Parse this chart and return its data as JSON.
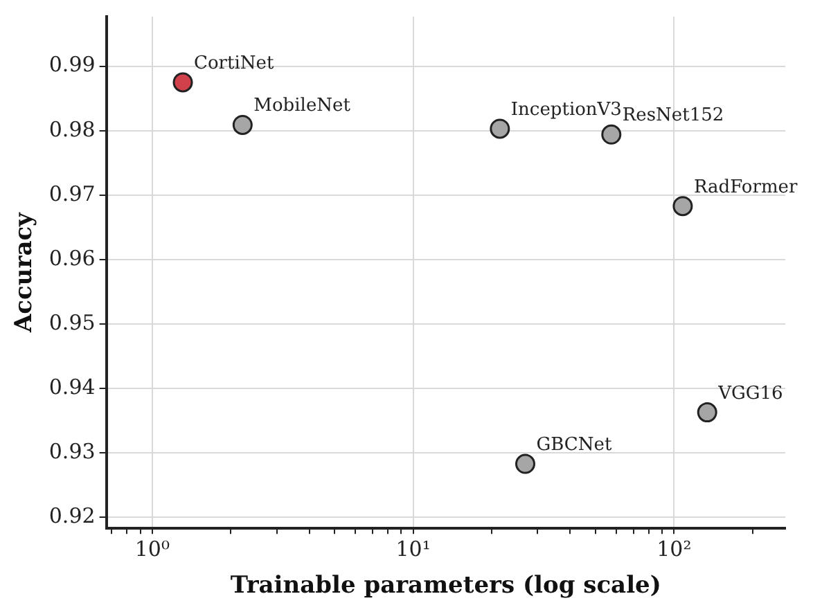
{
  "chart_data": {
    "type": "scatter",
    "xlabel": "Trainable parameters (log scale)",
    "ylabel": "Accuracy",
    "log": "x",
    "xlim": [
      0.667,
      267
    ],
    "ylim": [
      0.9183,
      0.9977
    ],
    "xticks": [
      {
        "value": 0.7,
        "label": null
      },
      {
        "value": 0.8,
        "label": null
      },
      {
        "value": 0.9,
        "label": null
      },
      {
        "value": 1,
        "label": "10⁰"
      },
      {
        "value": 2,
        "label": null
      },
      {
        "value": 3,
        "label": null
      },
      {
        "value": 4,
        "label": null
      },
      {
        "value": 5,
        "label": null
      },
      {
        "value": 6,
        "label": null
      },
      {
        "value": 7,
        "label": null
      },
      {
        "value": 8,
        "label": null
      },
      {
        "value": 9,
        "label": null
      },
      {
        "value": 10,
        "label": "10¹"
      },
      {
        "value": 20,
        "label": null
      },
      {
        "value": 30,
        "label": null
      },
      {
        "value": 40,
        "label": null
      },
      {
        "value": 50,
        "label": null
      },
      {
        "value": 60,
        "label": null
      },
      {
        "value": 70,
        "label": null
      },
      {
        "value": 80,
        "label": null
      },
      {
        "value": 90,
        "label": null
      },
      {
        "value": 100,
        "label": "10²"
      },
      {
        "value": 200,
        "label": null
      }
    ],
    "yticks": [
      0.92,
      0.93,
      0.94,
      0.95,
      0.96,
      0.97,
      0.98,
      0.99
    ],
    "grid": true,
    "legend": false,
    "marker": "circle",
    "series": [
      {
        "name": "CortiNet",
        "color": "#d0414b",
        "x": [
          1.31
        ],
        "values": [
          0.9875
        ]
      },
      {
        "name": "MobileNet",
        "color": "#a6a6a6",
        "x": [
          2.22
        ],
        "values": [
          0.9809
        ]
      },
      {
        "name": "InceptionV3",
        "color": "#a6a6a6",
        "x": [
          21.5
        ],
        "values": [
          0.9803
        ]
      },
      {
        "name": "ResNet152",
        "color": "#a6a6a6",
        "x": [
          57.5
        ],
        "values": [
          0.9794
        ]
      },
      {
        "name": "RadFormer",
        "color": "#a6a6a6",
        "x": [
          108
        ],
        "values": [
          0.9683
        ]
      },
      {
        "name": "VGG16",
        "color": "#a6a6a6",
        "x": [
          134
        ],
        "values": [
          0.9363
        ]
      },
      {
        "name": "GBCNet",
        "color": "#a6a6a6",
        "x": [
          26.9
        ],
        "values": [
          0.9283
        ]
      }
    ]
  }
}
